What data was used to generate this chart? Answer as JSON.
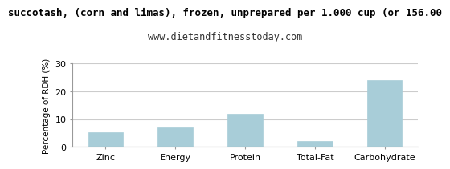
{
  "title": "succotash, (corn and limas), frozen, unprepared per 1.000 cup (or 156.00",
  "subtitle": "www.dietandfitnesstoday.com",
  "categories": [
    "Zinc",
    "Energy",
    "Protein",
    "Total-Fat",
    "Carbohydrate"
  ],
  "values": [
    5.2,
    7.0,
    12.0,
    2.1,
    24.0
  ],
  "bar_color": "#a8cdd8",
  "ylabel": "Percentage of RDH (%)",
  "ylim": [
    0,
    30
  ],
  "yticks": [
    0,
    10,
    20,
    30
  ],
  "background_color": "#ffffff",
  "grid_color": "#cccccc",
  "title_fontsize": 9,
  "subtitle_fontsize": 8.5,
  "axis_label_fontsize": 7.5,
  "tick_fontsize": 8
}
